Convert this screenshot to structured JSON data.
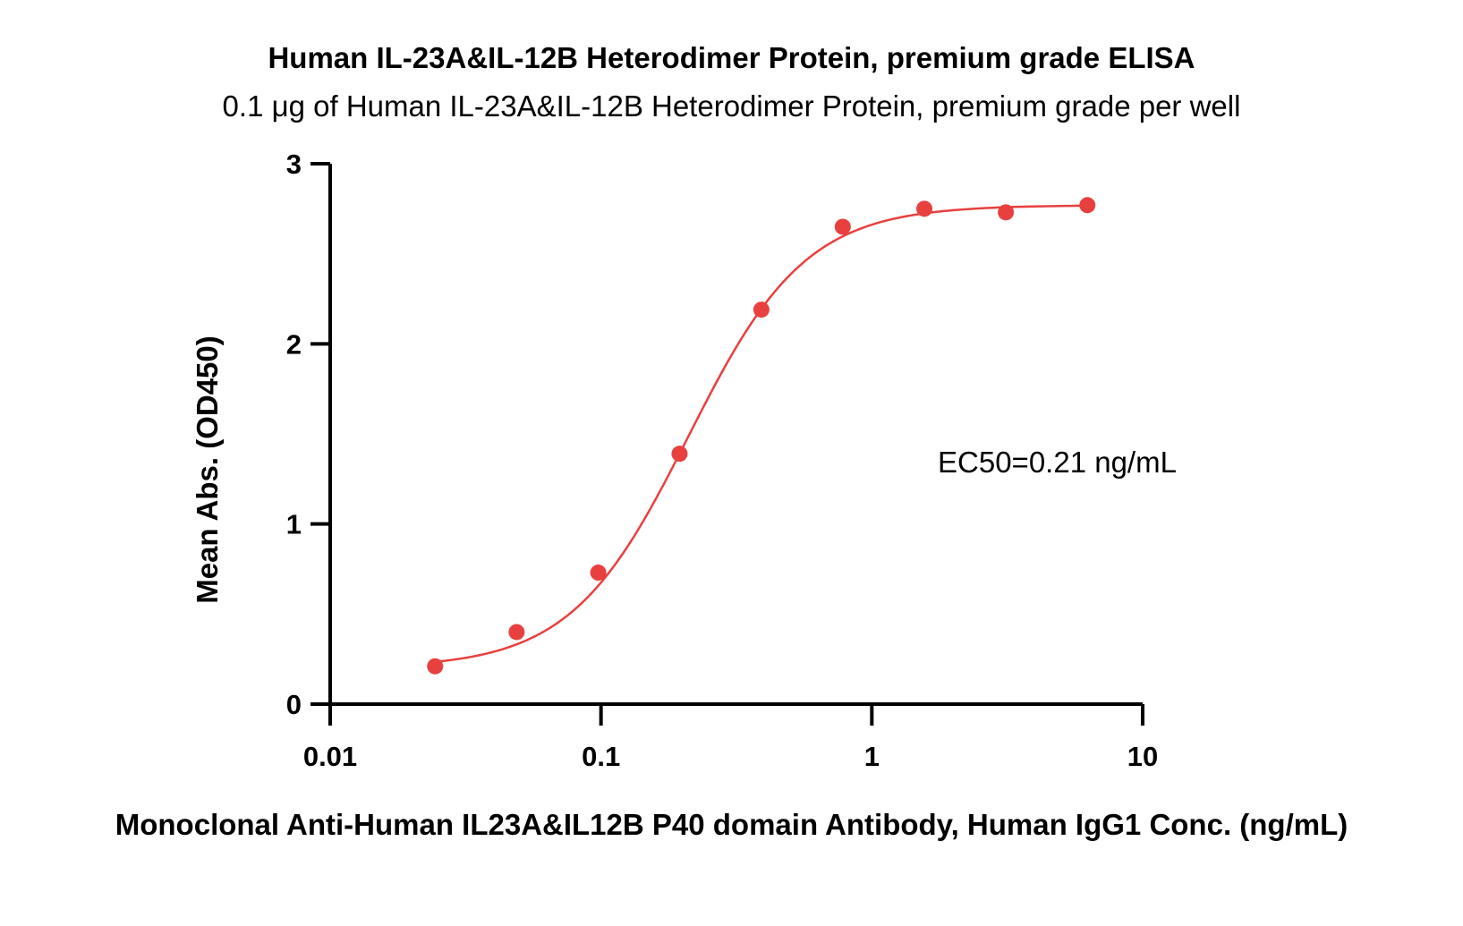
{
  "chart_data": {
    "type": "scatter",
    "title": "Human IL-23A&IL-12B Heterodimer Protein, premium grade ELISA",
    "subtitle": "0.1 μg of Human IL-23A&IL-12B Heterodimer Protein, premium grade per well",
    "xlabel": "Monoclonal Anti-Human IL23A&IL12B P40 domain Antibody, Human IgG1 Conc. (ng/mL)",
    "ylabel": "Mean Abs. (OD450)",
    "x_scale": "log",
    "xlim": [
      0.01,
      10
    ],
    "ylim": [
      0,
      3
    ],
    "x_ticks": [
      0.01,
      0.1,
      1,
      10
    ],
    "x_tick_labels": [
      "0.01",
      "0.1",
      "1",
      "10"
    ],
    "y_ticks": [
      0,
      1,
      2,
      3
    ],
    "y_tick_labels": [
      "0",
      "1",
      "2",
      "3"
    ],
    "grid": false,
    "color": "#e8403f",
    "series": [
      {
        "x": [
          0.0244,
          0.0488,
          0.0977,
          0.195,
          0.391,
          0.781,
          1.563,
          3.125,
          6.25
        ],
        "y": [
          0.21,
          0.4,
          0.73,
          1.39,
          2.19,
          2.65,
          2.75,
          2.73,
          2.77
        ]
      }
    ],
    "fit": {
      "model": "4PL",
      "bottom": 0.2,
      "top": 2.77,
      "ec50": 0.21,
      "hill": 2.0
    },
    "annotation": "EC50=0.21 ng/mL"
  }
}
